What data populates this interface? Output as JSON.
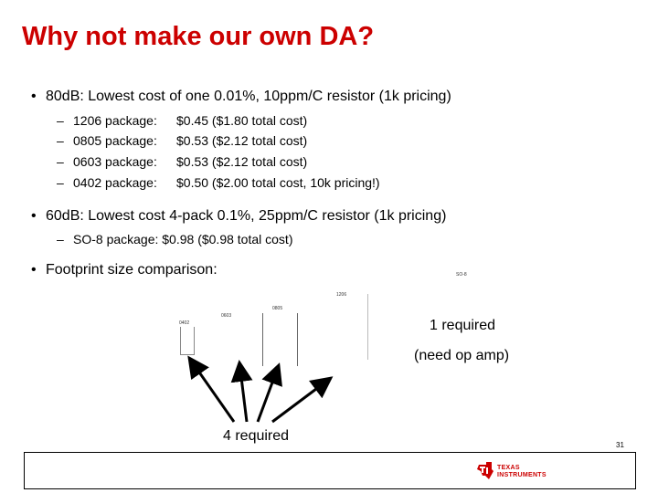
{
  "slide": {
    "title": "Why not make our own DA?",
    "bullets": [
      {
        "marker": "•",
        "text": "80dB:  Lowest cost of one 0.01%, 10ppm/C resistor (1k pricing)",
        "subitems": [
          {
            "marker": "–",
            "package": "1206 package:",
            "price": "$0.45 ($1.80 total cost)"
          },
          {
            "marker": "–",
            "package": "0805 package:",
            "price": "$0.53 ($2.12 total cost)"
          },
          {
            "marker": "–",
            "package": "0603 package:",
            "price": "$0.53 ($2.12 total cost)"
          },
          {
            "marker": "–",
            "package": "0402 package:",
            "price": "$0.50 ($2.00 total cost, 10k pricing!)"
          }
        ]
      },
      {
        "marker": "•",
        "text": "60dB:  Lowest cost 4-pack 0.1%, 25ppm/C resistor (1k pricing)",
        "subitems": [
          {
            "marker": "–",
            "text": "SO-8 package:  $0.98 ($0.98 total cost)"
          }
        ]
      },
      {
        "marker": "•",
        "text": "Footprint size comparison:"
      }
    ],
    "footprint_labels": {
      "so8": "SO-8",
      "p1206": "1206",
      "p0805": "0805",
      "p0603": "0603",
      "p0402": "0402"
    },
    "callouts": {
      "one_required": "1 required",
      "need_op_amp": "(need op amp)",
      "four_required": "4 required"
    },
    "page_number": "31",
    "logo": {
      "line1": "TEXAS",
      "line2": "INSTRUMENTS",
      "color": "#cc0000"
    },
    "colors": {
      "title": "#cc0000"
    }
  }
}
